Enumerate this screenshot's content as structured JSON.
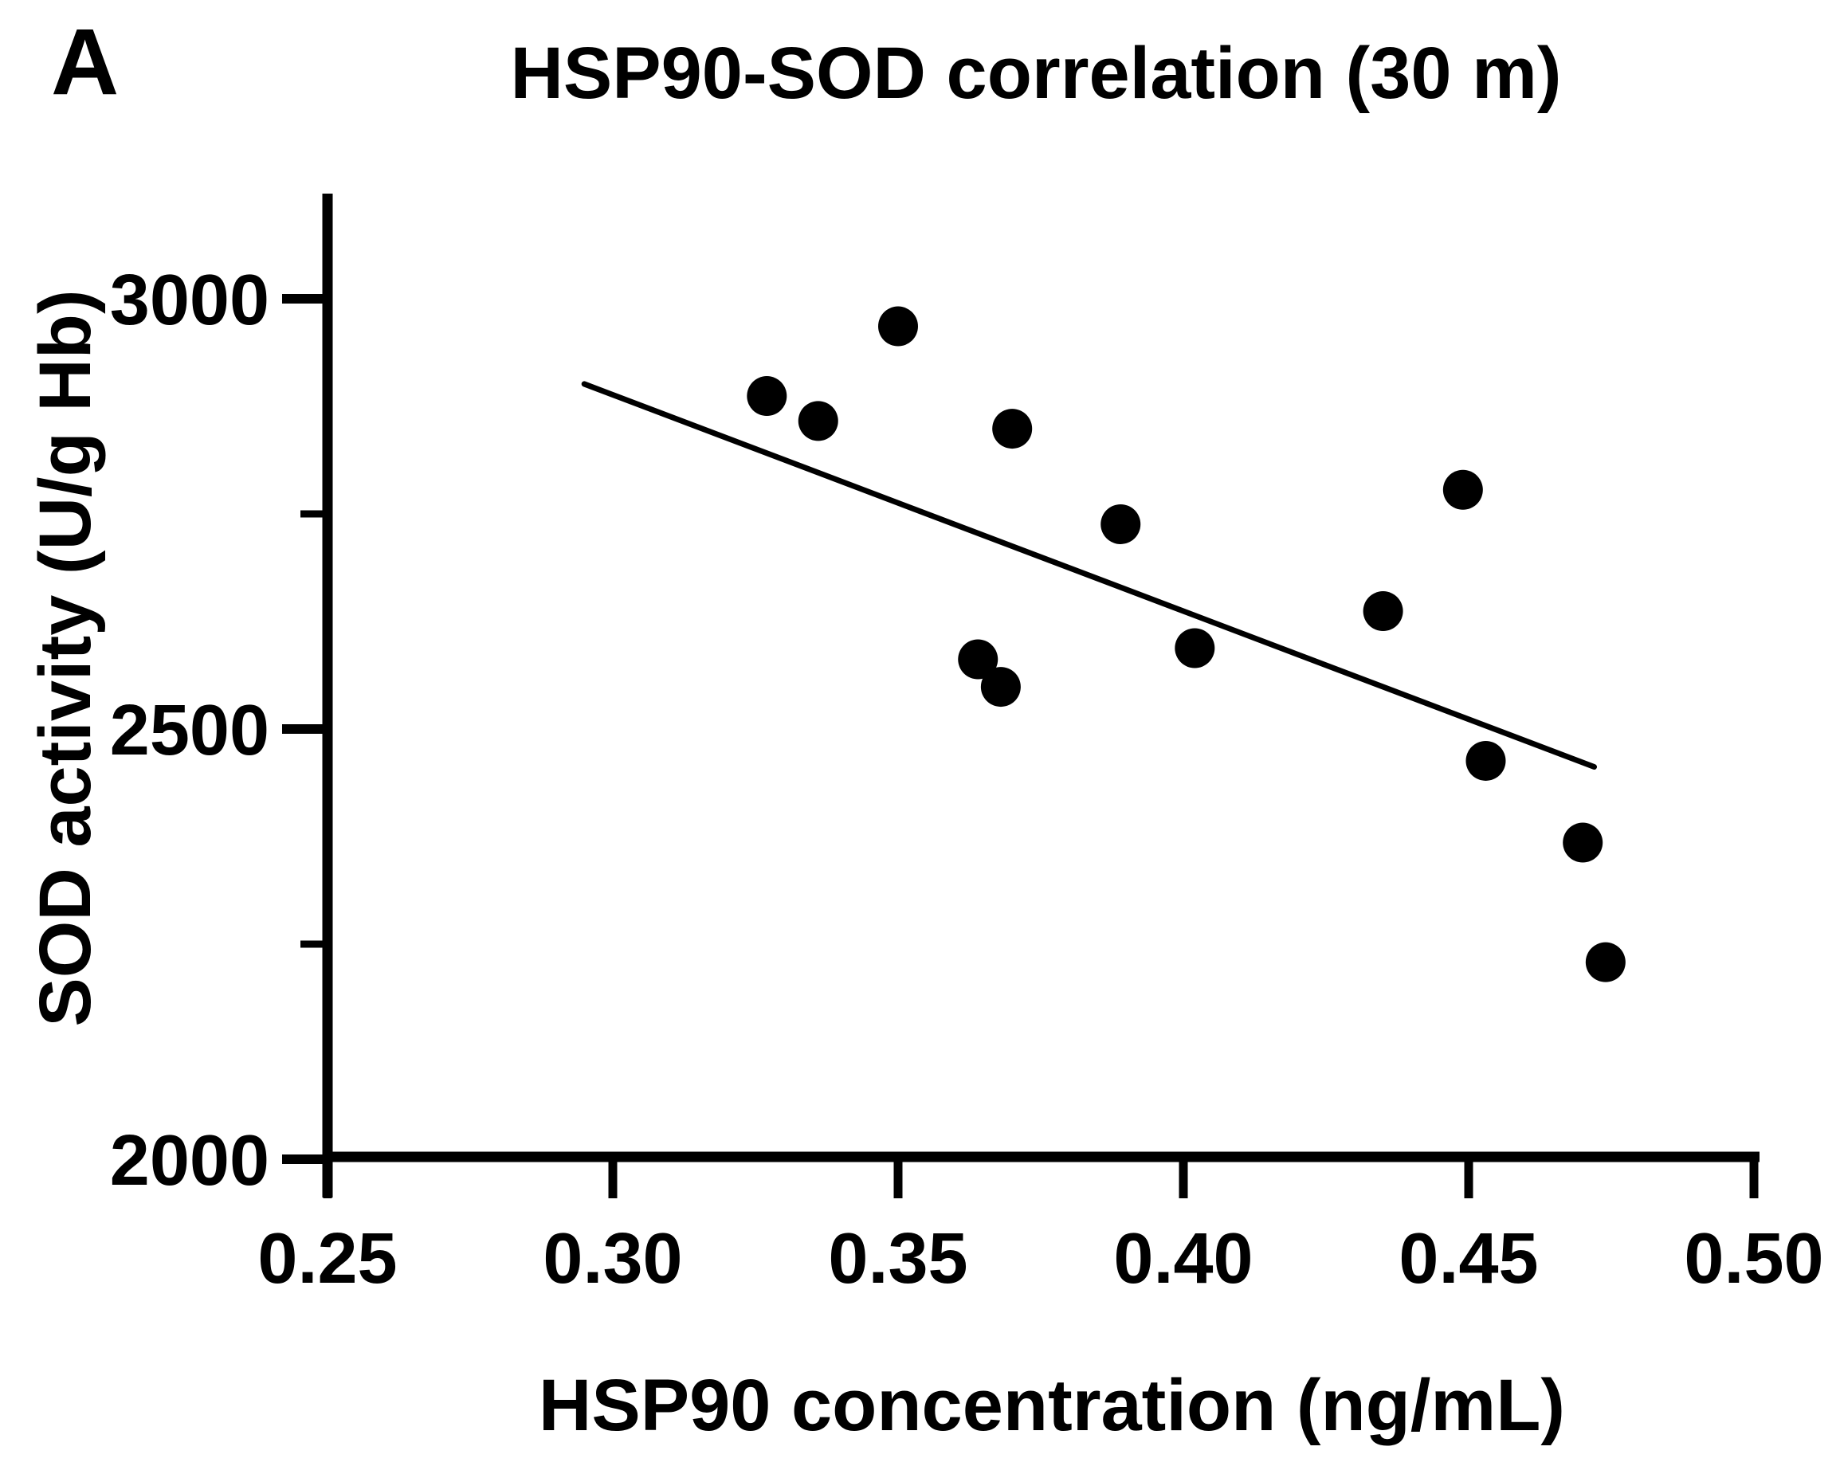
{
  "panel_label": "A",
  "colors": {
    "foreground": "#000000",
    "background": "#ffffff"
  },
  "chart_data": {
    "type": "scatter",
    "title": "HSP90-SOD correlation (30 m)",
    "xlabel": "HSP90 concentration (ng/mL)",
    "ylabel": "SOD activity (U/g Hb)",
    "xlim": [
      0.25,
      0.5
    ],
    "ylim": [
      2000,
      3120
    ],
    "grid": false,
    "legend_position": "none",
    "marker_color": "#000000",
    "x_ticks": [
      0.25,
      0.3,
      0.35,
      0.4,
      0.45,
      0.5
    ],
    "x_tick_labels": [
      "0.25",
      "0.30",
      "0.35",
      "0.40",
      "0.45",
      "0.50"
    ],
    "y_major_ticks": [
      3000,
      2500,
      2000
    ],
    "y_tick_labels": [
      "3000",
      "2500",
      "2000"
    ],
    "y_minor_ticks": [
      2750,
      2250
    ],
    "points": [
      {
        "x": 0.327,
        "y": 2887
      },
      {
        "x": 0.336,
        "y": 2858
      },
      {
        "x": 0.35,
        "y": 2968
      },
      {
        "x": 0.364,
        "y": 2581
      },
      {
        "x": 0.368,
        "y": 2549
      },
      {
        "x": 0.37,
        "y": 2849
      },
      {
        "x": 0.389,
        "y": 2738
      },
      {
        "x": 0.402,
        "y": 2594
      },
      {
        "x": 0.435,
        "y": 2637
      },
      {
        "x": 0.449,
        "y": 2778
      },
      {
        "x": 0.453,
        "y": 2463
      },
      {
        "x": 0.47,
        "y": 2368
      },
      {
        "x": 0.474,
        "y": 2229
      }
    ],
    "trend_line": {
      "x1": 0.295,
      "y1": 2901,
      "x2": 0.472,
      "y2": 2456
    }
  }
}
